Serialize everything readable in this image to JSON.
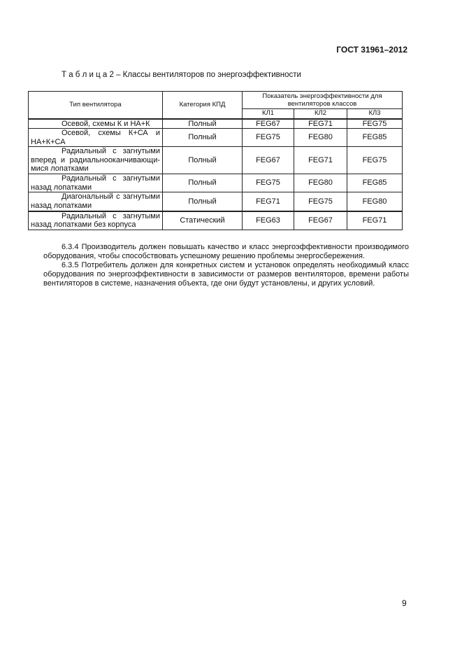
{
  "header": {
    "doc_id": "ГОСТ 31961–2012"
  },
  "table": {
    "caption": "Т а б л и ц а 2 – Классы вентиляторов по энергоэффективности",
    "headers": {
      "type": "Тип вентилятора",
      "category": "Категория КПД",
      "indicator": "Показатель энергоэффективности для вентиляторов классов",
      "classes": [
        "КЛ1",
        "КЛ2",
        "КЛ3"
      ]
    },
    "rows": [
      {
        "type": "Осевой, схемы К и НА+К",
        "category": "Полный",
        "values": [
          "FEG67",
          "FEG71",
          "FEG75"
        ]
      },
      {
        "type": "Осевой, схемы К+СА и НА+К+СА",
        "category": "Полный",
        "values": [
          "FEG75",
          "FEG80",
          "FEG85"
        ]
      },
      {
        "type": "Радиальный с загнутыми вперед и радиальнооканчивающи-мися лопатками",
        "category": "Полный",
        "values": [
          "FEG67",
          "FEG71",
          "FEG75"
        ]
      },
      {
        "type": "Радиальный с загнутыми назад лопатками",
        "category": "Полный",
        "values": [
          "FEG75",
          "FEG80",
          "FEG85"
        ]
      },
      {
        "type": "Диагональный с загнутыми назад лопатками",
        "category": "Полный",
        "values": [
          "FEG71",
          "FEG75",
          "FEG80"
        ]
      },
      {
        "type": "Радиальный с загнутыми назад лопатками без корпуса",
        "category": "Статический",
        "values": [
          "FEG63",
          "FEG67",
          "FEG71"
        ]
      }
    ]
  },
  "paragraphs": [
    "6.3.4 Производитель должен повышать качество и класс энергоэффективности производимого оборудования, чтобы способствовать успешному решению проблемы энергосбережения.",
    "6.3.5 Потребитель должен для конкретных систем и установок определять необходимый класс оборудования по энергоэффективности в зависимости от размеров вентиляторов, времени работы вентиляторов в системе, назначения объекта, где они будут установлены, и других условий."
  ],
  "page_number": "9"
}
